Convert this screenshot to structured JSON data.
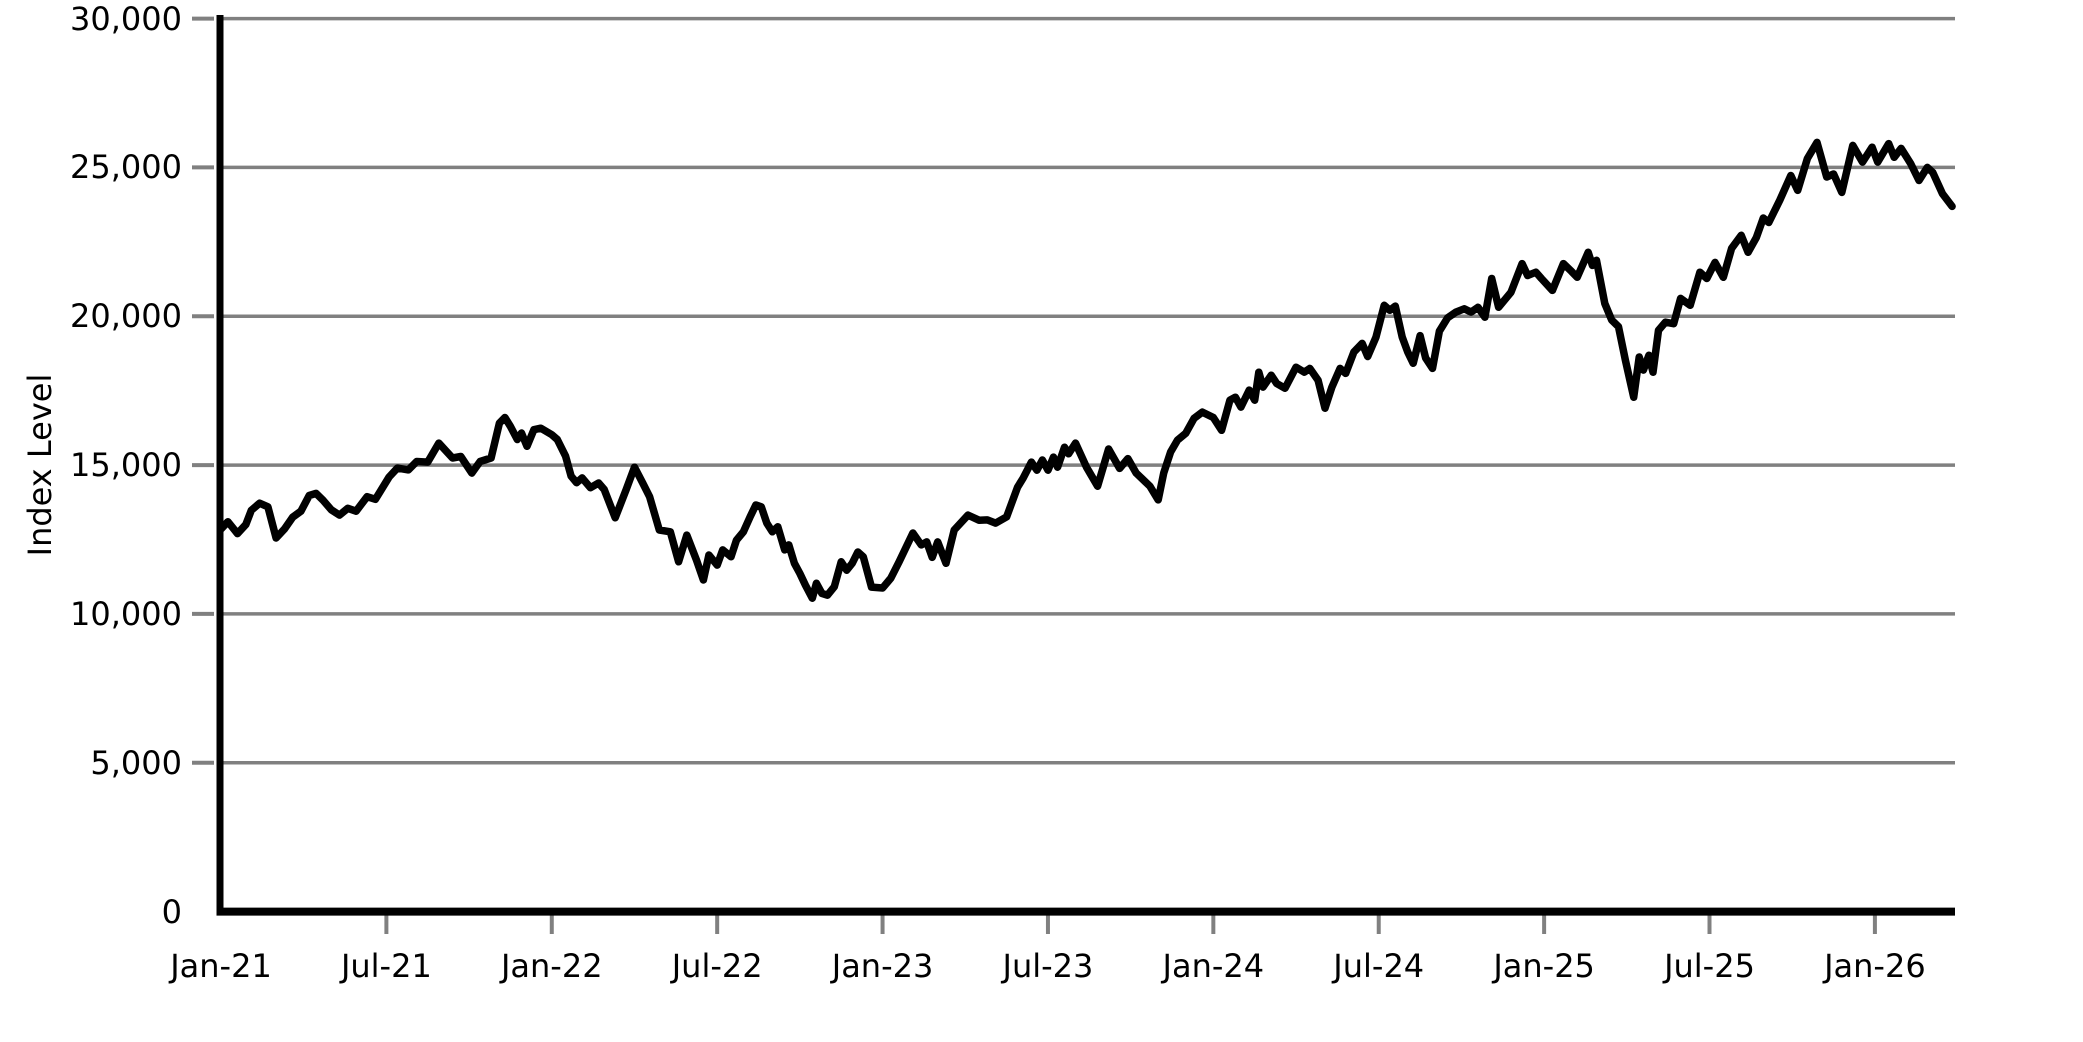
{
  "chart_data": {
    "type": "line",
    "title": "",
    "xlabel": "",
    "ylabel": "Index Level",
    "ylim": [
      0,
      30000
    ],
    "x_unit": "months since Jan-2021",
    "xlim_months": [
      0,
      62.8
    ],
    "grid": "horizontal",
    "legend": "none",
    "background": "#ffffff",
    "line_color": "#000000",
    "axis_color": "#000000",
    "grid_color": "#808080",
    "y_ticks": [
      {
        "value": 0,
        "label": "0"
      },
      {
        "value": 5000,
        "label": "5,000"
      },
      {
        "value": 10000,
        "label": "10,000"
      },
      {
        "value": 15000,
        "label": "15,000"
      },
      {
        "value": 20000,
        "label": "20,000"
      },
      {
        "value": 25000,
        "label": "25,000"
      },
      {
        "value": 30000,
        "label": "30,000"
      }
    ],
    "x_ticks": [
      {
        "month": 0,
        "label": "Jan-21"
      },
      {
        "month": 6,
        "label": "Jul-21"
      },
      {
        "month": 12,
        "label": "Jan-22"
      },
      {
        "month": 18,
        "label": "Jul-22"
      },
      {
        "month": 24,
        "label": "Jan-23"
      },
      {
        "month": 30,
        "label": "Jul-23"
      },
      {
        "month": 36,
        "label": "Jan-24"
      },
      {
        "month": 42,
        "label": "Jul-24"
      },
      {
        "month": 48,
        "label": "Jan-25"
      },
      {
        "month": 54,
        "label": "Jul-25"
      },
      {
        "month": 60,
        "label": "Jan-26"
      }
    ],
    "series": [
      {
        "x_months": [
          0.0,
          0.25,
          0.6,
          0.9,
          1.1,
          1.4,
          1.7,
          2.0,
          2.3,
          2.6,
          2.9,
          3.2,
          3.45,
          3.7,
          4.0,
          4.3,
          4.6,
          4.9,
          5.3,
          5.6,
          6.1,
          6.4,
          6.8,
          7.1,
          7.5,
          7.9,
          8.4,
          8.7,
          9.1,
          9.4,
          9.8,
          10.1,
          10.3,
          10.5,
          10.75,
          10.9,
          11.1,
          11.35,
          11.6,
          12.0,
          12.2,
          12.5,
          12.7,
          12.9,
          13.1,
          13.4,
          13.7,
          13.9,
          14.3,
          14.7,
          15.0,
          15.3,
          15.55,
          15.9,
          16.3,
          16.6,
          16.9,
          17.25,
          17.5,
          17.7,
          18.0,
          18.2,
          18.5,
          18.7,
          18.95,
          19.2,
          19.4,
          19.6,
          19.8,
          20.0,
          20.2,
          20.45,
          20.6,
          20.8,
          21.0,
          21.2,
          21.45,
          21.6,
          21.8,
          22.0,
          22.25,
          22.5,
          22.7,
          22.9,
          23.1,
          23.3,
          23.6,
          24.0,
          24.3,
          24.6,
          25.1,
          25.4,
          25.6,
          25.8,
          26.0,
          26.3,
          26.6,
          27.1,
          27.5,
          27.8,
          28.1,
          28.5,
          28.9,
          29.1,
          29.4,
          29.6,
          29.8,
          30.0,
          30.2,
          30.35,
          30.6,
          30.75,
          31.0,
          31.4,
          31.8,
          32.2,
          32.6,
          32.9,
          33.2,
          33.7,
          34.0,
          34.2,
          34.45,
          34.7,
          35.0,
          35.3,
          35.6,
          36.0,
          36.3,
          36.6,
          36.8,
          37.0,
          37.3,
          37.5,
          37.65,
          37.8,
          38.1,
          38.3,
          38.6,
          39.0,
          39.3,
          39.5,
          39.8,
          40.05,
          40.3,
          40.6,
          40.8,
          41.1,
          41.4,
          41.6,
          41.9,
          42.2,
          42.4,
          42.6,
          42.85,
          43.05,
          43.25,
          43.5,
          43.7,
          43.95,
          44.2,
          44.5,
          44.8,
          45.1,
          45.35,
          45.6,
          45.85,
          46.1,
          46.35,
          46.8,
          47.2,
          47.4,
          47.7,
          47.9,
          48.3,
          48.7,
          49.0,
          49.2,
          49.6,
          49.75,
          49.9,
          50.2,
          50.45,
          50.7,
          50.95,
          51.25,
          51.45,
          51.6,
          51.8,
          51.95,
          52.15,
          52.4,
          52.7,
          52.95,
          53.3,
          53.65,
          53.9,
          54.2,
          54.5,
          54.8,
          55.15,
          55.4,
          55.7,
          55.95,
          56.15,
          56.55,
          56.95,
          57.2,
          57.55,
          57.9,
          58.25,
          58.5,
          58.8,
          59.2,
          59.55,
          59.9,
          60.1,
          60.5,
          60.7,
          60.95,
          61.3,
          61.6,
          61.9,
          62.1,
          62.45,
          62.8
        ],
        "values": [
          12850,
          13100,
          12700,
          13000,
          13480,
          13720,
          13600,
          12550,
          12850,
          13250,
          13450,
          13980,
          14050,
          13820,
          13500,
          13320,
          13550,
          13450,
          13940,
          13850,
          14600,
          14900,
          14840,
          15120,
          15100,
          15740,
          15240,
          15290,
          14730,
          15120,
          15240,
          16410,
          16600,
          16300,
          15860,
          16080,
          15630,
          16190,
          16240,
          16020,
          15860,
          15300,
          14630,
          14410,
          14570,
          14240,
          14400,
          14180,
          13230,
          14180,
          14930,
          14400,
          13940,
          12820,
          12760,
          11750,
          12650,
          11810,
          11140,
          11980,
          11640,
          12150,
          11920,
          12480,
          12760,
          13270,
          13660,
          13600,
          13050,
          12760,
          12930,
          12150,
          12320,
          11700,
          11360,
          10970,
          10530,
          11030,
          10690,
          10630,
          10910,
          11750,
          11470,
          11700,
          12080,
          11920,
          10900,
          10870,
          11200,
          11750,
          12720,
          12320,
          12420,
          11900,
          12420,
          11700,
          12820,
          13320,
          13150,
          13160,
          13050,
          13260,
          14260,
          14560,
          15100,
          14830,
          15170,
          14830,
          15270,
          14930,
          15600,
          15380,
          15740,
          14930,
          14290,
          15540,
          14890,
          15220,
          14730,
          14290,
          13830,
          14730,
          15440,
          15840,
          16070,
          16570,
          16780,
          16600,
          16170,
          17180,
          17280,
          16950,
          17520,
          17180,
          18120,
          17620,
          18020,
          17740,
          17580,
          18290,
          18120,
          18250,
          17850,
          16910,
          17620,
          18250,
          18080,
          18800,
          19090,
          18650,
          19300,
          20370,
          20200,
          20340,
          19300,
          18800,
          18420,
          19350,
          18600,
          18250,
          19500,
          19950,
          20140,
          20250,
          20140,
          20300,
          19970,
          21270,
          20300,
          20810,
          21770,
          21370,
          21480,
          21270,
          20870,
          21770,
          21500,
          21310,
          22150,
          21710,
          21880,
          20430,
          19870,
          19650,
          18520,
          17280,
          18630,
          18190,
          18690,
          18120,
          19530,
          19800,
          19750,
          20600,
          20370,
          21480,
          21270,
          21810,
          21310,
          22280,
          22720,
          22150,
          22650,
          23300,
          23150,
          23900,
          24730,
          24230,
          25300,
          25840,
          24680,
          24780,
          24160,
          25740,
          25180,
          25680,
          25180,
          25800,
          25340,
          25640,
          25130,
          24560,
          25000,
          24830,
          24120,
          23690
        ]
      }
    ]
  }
}
